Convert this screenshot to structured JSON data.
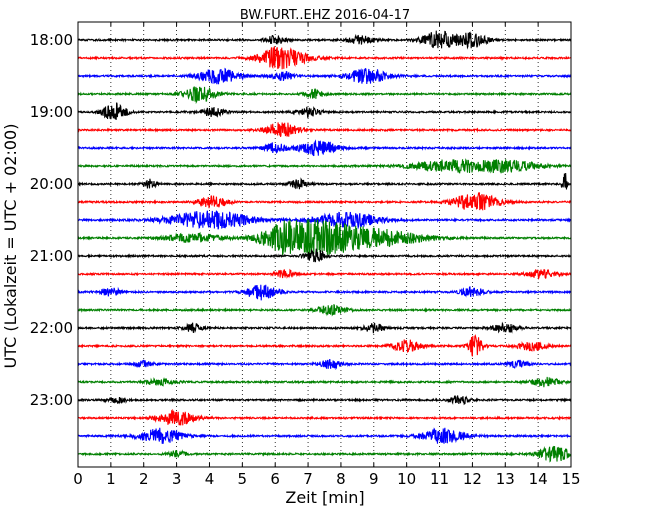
{
  "chart_data": {
    "type": "line",
    "title": "BW.FURT..EHZ 2016-04-17",
    "xlabel": "Zeit  [min]",
    "ylabel": "UTC (Lokalzeit = UTC + 02:00)",
    "xlim": [
      0,
      15
    ],
    "xticks": [
      0,
      1,
      2,
      3,
      4,
      5,
      6,
      7,
      8,
      9,
      10,
      11,
      12,
      13,
      14,
      15
    ],
    "ytick_labels": [
      "18:00",
      "19:00",
      "20:00",
      "21:00",
      "22:00",
      "23:00"
    ],
    "grid": "vertical dotted",
    "trace_colors": [
      "#000000",
      "#ff0000",
      "#0000ff",
      "#008000"
    ],
    "traces": [
      {
        "start": "18:00",
        "bursts": [
          [
            11.0,
            0.6,
            0.35
          ],
          [
            12.0,
            0.5,
            0.3
          ],
          [
            8.6,
            0.3,
            0.25
          ],
          [
            6.0,
            0.3,
            0.2
          ]
        ]
      },
      {
        "start": "18:15",
        "bursts": [
          [
            6.3,
            0.5,
            0.55
          ],
          [
            6.0,
            0.3,
            0.3
          ]
        ]
      },
      {
        "start": "18:30",
        "bursts": [
          [
            4.3,
            0.5,
            0.45
          ],
          [
            8.8,
            0.5,
            0.45
          ],
          [
            6.2,
            0.3,
            0.25
          ]
        ]
      },
      {
        "start": "18:45",
        "bursts": [
          [
            3.7,
            0.5,
            0.35
          ],
          [
            7.2,
            0.3,
            0.2
          ]
        ]
      },
      {
        "start": "19:00",
        "bursts": [
          [
            1.1,
            0.6,
            0.25
          ],
          [
            4.1,
            0.3,
            0.25
          ],
          [
            7.0,
            0.3,
            0.25
          ]
        ]
      },
      {
        "start": "19:15",
        "bursts": [
          [
            6.2,
            0.5,
            0.35
          ]
        ]
      },
      {
        "start": "19:30",
        "bursts": [
          [
            7.3,
            0.5,
            0.4
          ],
          [
            6.0,
            0.3,
            0.25
          ]
        ]
      },
      {
        "start": "19:45",
        "bursts": [
          [
            11.3,
            0.4,
            0.8
          ],
          [
            13.0,
            0.4,
            0.7
          ]
        ]
      },
      {
        "start": "20:00",
        "bursts": [
          [
            14.8,
            0.9,
            0.05
          ],
          [
            6.7,
            0.3,
            0.2
          ],
          [
            2.2,
            0.3,
            0.15
          ]
        ]
      },
      {
        "start": "20:15",
        "bursts": [
          [
            12.1,
            0.6,
            0.5
          ],
          [
            4.1,
            0.4,
            0.3
          ]
        ]
      },
      {
        "start": "20:30",
        "bursts": [
          [
            4.0,
            0.6,
            0.9
          ],
          [
            8.2,
            0.5,
            0.7
          ]
        ]
      },
      {
        "start": "20:45",
        "bursts": [
          [
            7.3,
            1.0,
            0.9
          ],
          [
            6.3,
            0.6,
            0.5
          ],
          [
            9.2,
            0.5,
            1.0
          ],
          [
            3.5,
            0.3,
            0.6
          ]
        ]
      },
      {
        "start": "21:00",
        "bursts": [
          [
            7.2,
            0.5,
            0.2
          ]
        ]
      },
      {
        "start": "21:15",
        "bursts": [
          [
            6.3,
            0.3,
            0.2
          ],
          [
            14.1,
            0.3,
            0.3
          ]
        ]
      },
      {
        "start": "21:30",
        "bursts": [
          [
            5.6,
            0.5,
            0.35
          ],
          [
            1.0,
            0.3,
            0.2
          ],
          [
            12.0,
            0.3,
            0.25
          ]
        ]
      },
      {
        "start": "21:45",
        "bursts": [
          [
            7.7,
            0.3,
            0.3
          ]
        ]
      },
      {
        "start": "22:00",
        "bursts": [
          [
            3.5,
            0.3,
            0.2
          ],
          [
            9.0,
            0.3,
            0.2
          ],
          [
            13.0,
            0.3,
            0.25
          ]
        ]
      },
      {
        "start": "22:15",
        "bursts": [
          [
            12.1,
            0.8,
            0.15
          ],
          [
            10.0,
            0.4,
            0.3
          ],
          [
            13.8,
            0.3,
            0.3
          ]
        ]
      },
      {
        "start": "22:30",
        "bursts": [
          [
            7.7,
            0.3,
            0.25
          ],
          [
            2.0,
            0.2,
            0.2
          ],
          [
            13.4,
            0.25,
            0.2
          ]
        ]
      },
      {
        "start": "22:45",
        "bursts": [
          [
            14.2,
            0.3,
            0.3
          ],
          [
            2.5,
            0.2,
            0.3
          ]
        ]
      },
      {
        "start": "23:00",
        "bursts": [
          [
            11.6,
            0.3,
            0.2
          ],
          [
            1.2,
            0.2,
            0.2
          ]
        ]
      },
      {
        "start": "23:15",
        "bursts": [
          [
            3.0,
            0.5,
            0.4
          ]
        ]
      },
      {
        "start": "23:30",
        "bursts": [
          [
            2.5,
            0.5,
            0.45
          ],
          [
            11.1,
            0.5,
            0.45
          ]
        ]
      },
      {
        "start": "23:45",
        "bursts": [
          [
            14.5,
            0.5,
            0.35
          ],
          [
            3.0,
            0.2,
            0.2
          ]
        ]
      }
    ]
  }
}
